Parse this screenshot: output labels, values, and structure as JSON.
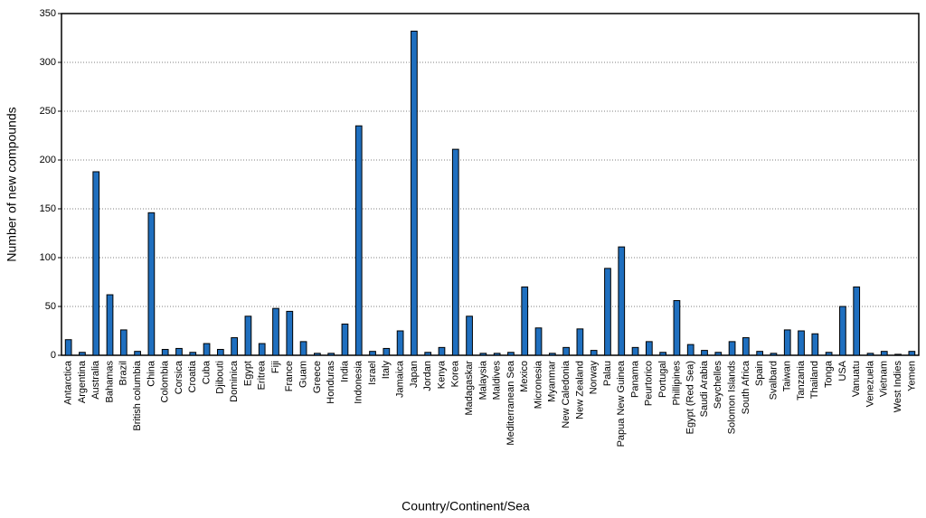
{
  "chart_data": {
    "type": "bar",
    "x_label": "Country/Continent/Sea",
    "y_label": "Number of new compounds",
    "categories": [
      "Antarctica",
      "Argentina",
      "Australia",
      "Bahamas",
      "Brazil",
      "British columbia",
      "China",
      "Colombia",
      "Corsica",
      "Croatia",
      "Cuba",
      "Djibouti",
      "Dominica",
      "Egypt",
      "Eritrea",
      "Fiji",
      "France",
      "Guam",
      "Greece",
      "Honduras",
      "India",
      "Indonesia",
      "Israel",
      "Italy",
      "Jamaica",
      "Japan",
      "Jordan",
      "Kenya",
      "Korea",
      "Madagaskar",
      "Malaysia",
      "Maldives",
      "Mediterranean Sea",
      "Mexico",
      "Micronesia",
      "Myanmar",
      "New Caledonia",
      "New Zealand",
      "Norway",
      "Palau",
      "Papua New Guinea",
      "Panama",
      "Peurtorico",
      "Portugal",
      "Phillipines",
      "Egypt (Red Sea)",
      "Saudi Arabia",
      "Seychelles",
      "Solomon Islands",
      "South Africa",
      "Spain",
      "Svalbard",
      "Taiwan",
      "Tanzania",
      "Thailand",
      "Tonga",
      "USA",
      "Vanuatu",
      "Venezuela",
      "Vietnam",
      "West Indies",
      "Yemen"
    ],
    "values": [
      16,
      3,
      188,
      62,
      26,
      4,
      146,
      6,
      7,
      3,
      12,
      6,
      18,
      40,
      12,
      48,
      45,
      14,
      2,
      2,
      32,
      235,
      4,
      7,
      25,
      332,
      3,
      8,
      211,
      40,
      2,
      2,
      3,
      70,
      28,
      2,
      8,
      27,
      5,
      89,
      111,
      8,
      14,
      3,
      56,
      11,
      5,
      3,
      14,
      18,
      4,
      2,
      26,
      25,
      22,
      3,
      50,
      70,
      2,
      4,
      1,
      4
    ],
    "color": "#1f6fbf",
    "ylim": [
      0,
      350
    ],
    "yticks": [
      0,
      50,
      100,
      150,
      200,
      250,
      300,
      350
    ],
    "grid": true
  }
}
